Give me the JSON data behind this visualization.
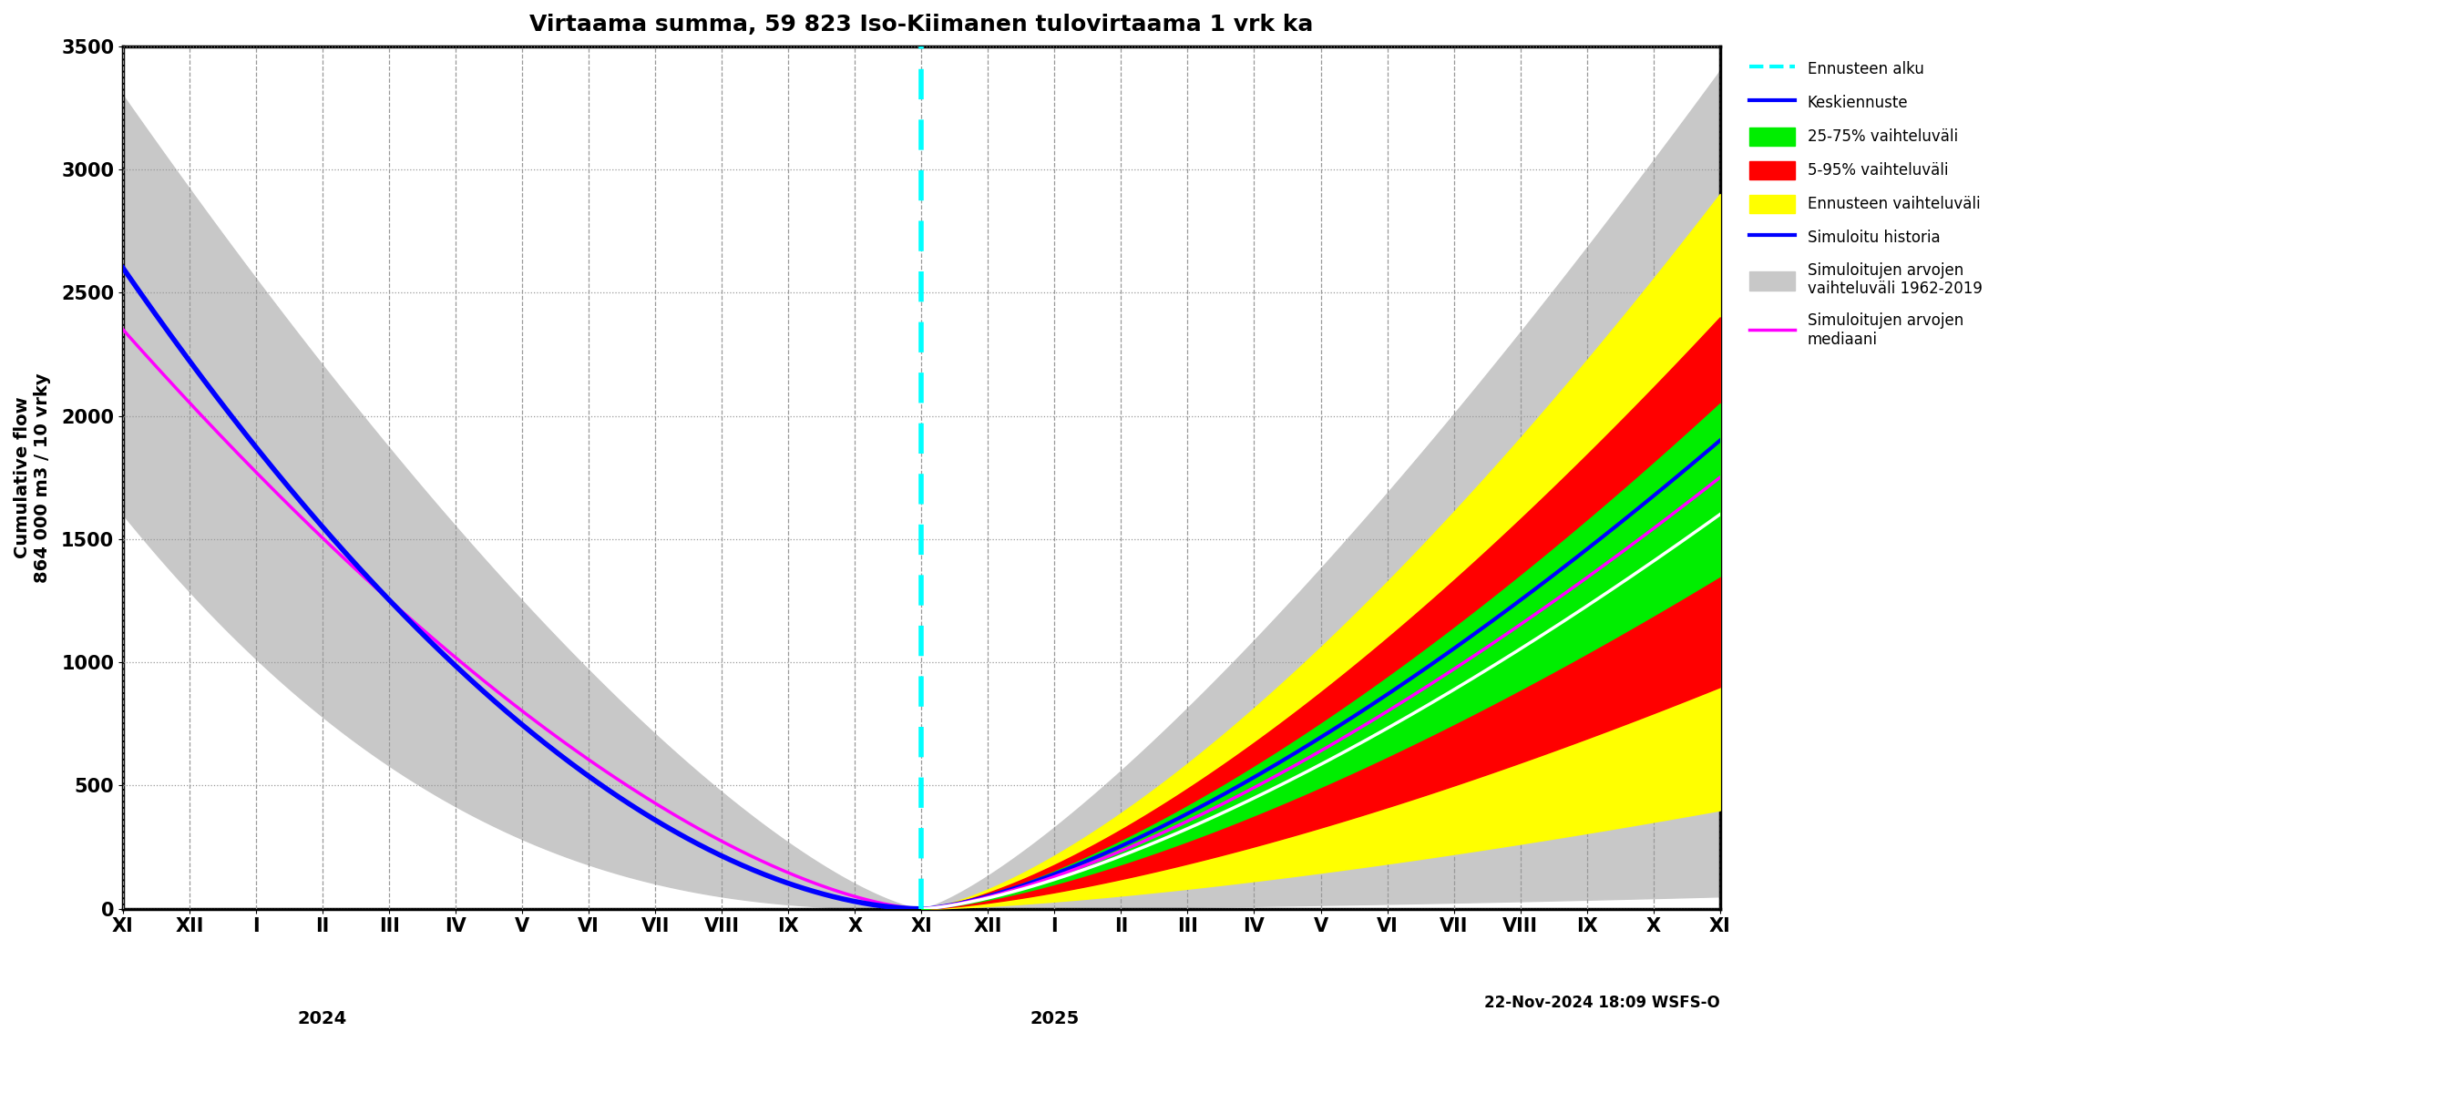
{
  "title": "Virtaama summa, 59 823 Iso-Kiimanen tulovirtaama 1 vrk ka",
  "ylabel": "Cumulative flow\n864 000 m3 / 10 vrky",
  "xlabel_bottom": "22-Nov-2024 18:09 WSFS-O",
  "ylim": [
    0,
    3500
  ],
  "background_color": "#ffffff",
  "xtick_labels": [
    "XI",
    "XII",
    "I",
    "II",
    "III",
    "IV",
    "V",
    "VI",
    "VII",
    "VIII",
    "IX",
    "X",
    "XI",
    "XII",
    "I",
    "II",
    "III",
    "IV",
    "V",
    "VI",
    "VII",
    "VIII",
    "IX",
    "X",
    "XI"
  ],
  "year_labels": [
    [
      "2024",
      3
    ],
    [
      "2025",
      14
    ]
  ],
  "n_hist": 13,
  "total": 25,
  "gray_color": "#c8c8c8",
  "blue_color": "#0000ff",
  "magenta_color": "#ff00ff",
  "green_color": "#00ee00",
  "red_color": "#ff0000",
  "yellow_color": "#ffff00",
  "white_color": "#ffffff",
  "cyan_color": "#00ffff"
}
